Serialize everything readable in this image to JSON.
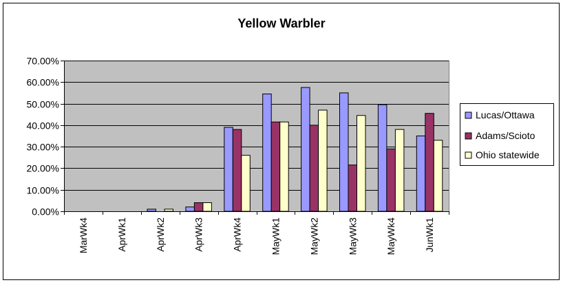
{
  "chart_data": {
    "type": "bar",
    "title": "Yellow Warbler",
    "xlabel": "",
    "ylabel": "",
    "categories": [
      "MarWk4",
      "AprWk1",
      "AprWk2",
      "AprWk3",
      "AprWk4",
      "MayWk1",
      "MayWk2",
      "MayWk3",
      "MayWk4",
      "JunWk1"
    ],
    "series": [
      {
        "name": "Lucas/Ottawa",
        "values": [
          0,
          0,
          1,
          2,
          39,
          54.5,
          57.5,
          55,
          49.5,
          35
        ]
      },
      {
        "name": "Adams/Scioto",
        "values": [
          0,
          0,
          0,
          4,
          38,
          41.5,
          40,
          21.5,
          29,
          45.5
        ]
      },
      {
        "name": "Ohio statewide",
        "values": [
          0,
          0,
          1,
          4,
          26,
          41.5,
          47,
          44.5,
          38,
          33
        ]
      }
    ],
    "colors": [
      "#9999FF",
      "#993366",
      "#FFFFCC"
    ],
    "plot_background": "#C0C0C0",
    "ylim": [
      0,
      70
    ],
    "ytick_step": 10,
    "ytick_suffix": "%",
    "ytick_decimals": 2,
    "grid": true,
    "legend_position": "right"
  }
}
